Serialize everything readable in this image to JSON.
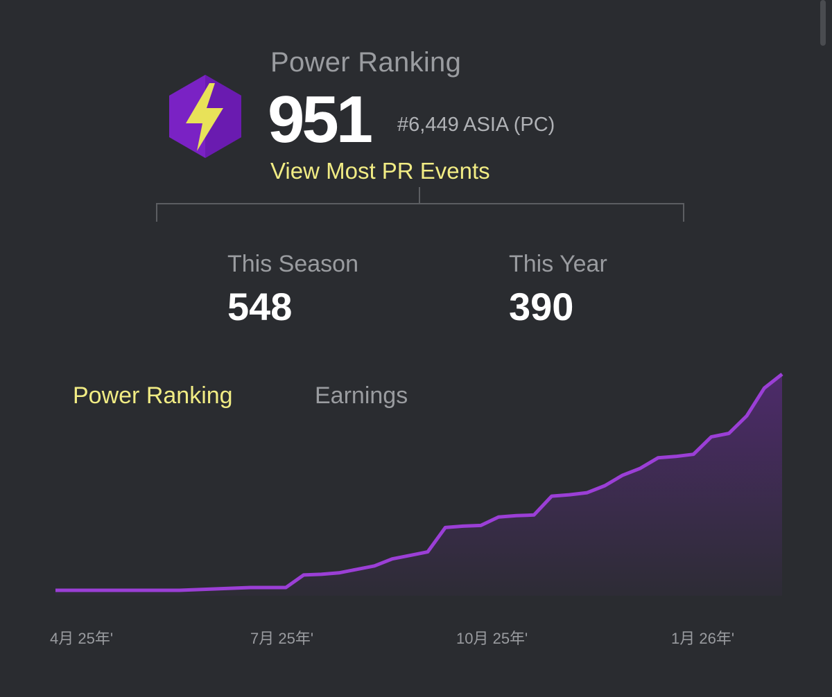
{
  "header": {
    "title": "Power Ranking",
    "points": "951",
    "rank": "#6,449 ASIA (PC)",
    "link": "View Most PR Events"
  },
  "stats": [
    {
      "label": "This Season",
      "value": "548"
    },
    {
      "label": "This Year",
      "value": "390"
    }
  ],
  "tabs": [
    {
      "label": "Power Ranking",
      "active": true
    },
    {
      "label": "Earnings",
      "active": false
    }
  ],
  "colors": {
    "accent": "#f1ec84",
    "line": "#9b3fd6",
    "icon_bg": "#7a22c4"
  },
  "icons": {
    "badge": "lightning-hexagon-icon"
  },
  "chart_data": {
    "type": "area",
    "x_ticks": [
      "4月 25年'",
      "7月 25年'",
      "10月 25年'",
      "1月 26年'"
    ],
    "series": [
      {
        "values": [
          0,
          0,
          0,
          0,
          0,
          0,
          0,
          0,
          1,
          2,
          3,
          4,
          4,
          4,
          22,
          23,
          25,
          30,
          35,
          45,
          50,
          55,
          90,
          92,
          93,
          105,
          107,
          108,
          135,
          137,
          140,
          150,
          165,
          175,
          190,
          192,
          195,
          220,
          225,
          250,
          290,
          310
        ]
      }
    ]
  }
}
